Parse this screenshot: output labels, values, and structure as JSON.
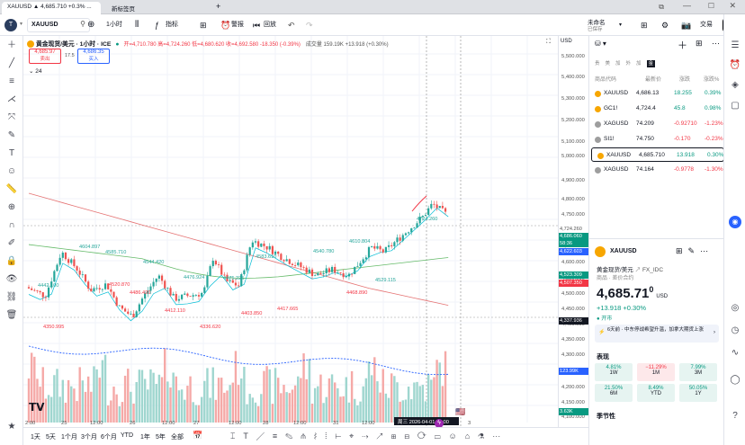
{
  "browser": {
    "tab1": "XAUUSD ▲ 4,685.710 +0.3% ...",
    "tab2": "新标签页",
    "new_tab": "+"
  },
  "topbar": {
    "symbol": "XAUUSD",
    "interval": "1小时",
    "indicators": "指标",
    "alerts": "警报",
    "replay": "回放",
    "layout_name": "未命名",
    "saved": "已保存",
    "trade": "交易",
    "publish": "发表",
    "avatar": "T"
  },
  "legend": {
    "title": "黄金现货/美元 · 1小时 · ICE",
    "ohlc": "开=4,710.780 高=4,724.260 低=4,680.620 收=4,692.580 -18.350 (-0.39%)",
    "volume": "成交量 159.19K +13.918 (+0.30%)",
    "sell_price": "4,685.97",
    "sell_label": "卖出",
    "spread": "17.5",
    "buy_price": "4,686.35",
    "buy_label": "买入",
    "collapse": "24"
  },
  "price_axis": {
    "currency": "USD",
    "labels": [
      "5,500.000",
      "5,400.000",
      "5,300.000",
      "5,200.000",
      "5,100.000",
      "5,000.000",
      "4,900.000",
      "4,800.000",
      "4,750.000",
      "4,700.000",
      "4,650.000",
      "4,600.000",
      "4,550.000",
      "4,500.000",
      "4,450.000",
      "4,400.000",
      "4,350.000",
      "4,300.000",
      "4,250.000",
      "4,200.000",
      "4,150.000",
      "4,100.000",
      "4,050.000"
    ],
    "tag_high": "4,724.260",
    "tag_high_label": "最高价",
    "tag_last": "4,686.060",
    "tag_timer": "58:36",
    "tag_ma1": "4,622.603",
    "tag_ma2": "4,523.309",
    "tag_ma3": "4,507.350",
    "tag_low": "4,337.936",
    "tag_low_label": "最低价",
    "tag_vol": "123.99K",
    "tag_vol2": "3.63K"
  },
  "time_axis": {
    "labels": [
      "2:00",
      "25",
      "12:00",
      "26",
      "12:00",
      "27",
      "12:00",
      "28",
      "12:00",
      "31",
      "12:00",
      "2",
      "3"
    ],
    "cursor": "周三 2026-04-01 09:00"
  },
  "annotations": [
    "4724.260",
    "4604.897",
    "4585.710",
    "4544.420",
    "4520.870",
    "4486.420",
    "4476.924",
    "4475.225",
    "4412.110",
    "4350.995",
    "4336.620",
    "4403.850",
    "4417.665",
    "4583.610",
    "4540.780",
    "4610.804",
    "4468.890",
    "4529.115",
    "4442.100"
  ],
  "chart_data": {
    "type": "candlestick",
    "symbol": "XAUUSD",
    "interval": "1h",
    "open": 4710.78,
    "high": 4724.26,
    "low": 4680.62,
    "close": 4692.58,
    "change": -18.35,
    "change_pct": -0.39,
    "ylim": [
      4050,
      5500
    ]
  },
  "bottombar": {
    "ranges": [
      "1天",
      "5天",
      "1个月",
      "3个月",
      "6个月",
      "YTD",
      "1年",
      "5年",
      "全部"
    ]
  },
  "watchlist": {
    "columns": [
      "商品代码",
      "最新价",
      "涨跌",
      "涨跌%"
    ],
    "rows": [
      {
        "sym": "XAUUSD",
        "last": "4,686.13",
        "chg": "18.255",
        "pct": "0.39%",
        "dir": "up"
      },
      {
        "sym": "GC1!",
        "last": "4,724.4",
        "chg": "45.8",
        "pct": "0.98%",
        "dir": "up"
      },
      {
        "sym": "XAGUSD",
        "last": "74.209",
        "chg": "-0.92710",
        "pct": "-1.23%",
        "dir": "down"
      },
      {
        "sym": "SI1!",
        "last": "74.750",
        "chg": "-0.170",
        "pct": "-0.23%",
        "dir": "down"
      },
      {
        "sym": "XAUUSD",
        "last": "4,685.710",
        "chg": "13.918",
        "pct": "0.30%",
        "dir": "up"
      },
      {
        "sym": "XAGUSD",
        "last": "74.164",
        "chg": "-0.9778",
        "pct": "-1.30%",
        "dir": "down"
      }
    ]
  },
  "details": {
    "symbol": "XAUUSD",
    "name": "黄金现货/美元",
    "exchange": "FX_IDC",
    "category": "商品 · 差价合约",
    "price_main": "4,685.71",
    "price_small": "0",
    "currency": "USD",
    "change": "+13.918",
    "change_pct": "+0.30%",
    "market_status": "开市",
    "news": "6天前 · 中东停战希望升温，加拿大期货上涨",
    "perf_title": "表现",
    "perf": [
      {
        "v": "4.81%",
        "l": "1W",
        "dir": "up"
      },
      {
        "v": "−11.29%",
        "l": "1M",
        "dir": "down"
      },
      {
        "v": "7.99%",
        "l": "3M",
        "dir": "up"
      },
      {
        "v": "21.50%",
        "l": "6M",
        "dir": "up"
      },
      {
        "v": "8.49%",
        "l": "YTD",
        "dir": "up"
      },
      {
        "v": "50.05%",
        "l": "1Y",
        "dir": "up"
      }
    ],
    "season_title": "季节性"
  }
}
